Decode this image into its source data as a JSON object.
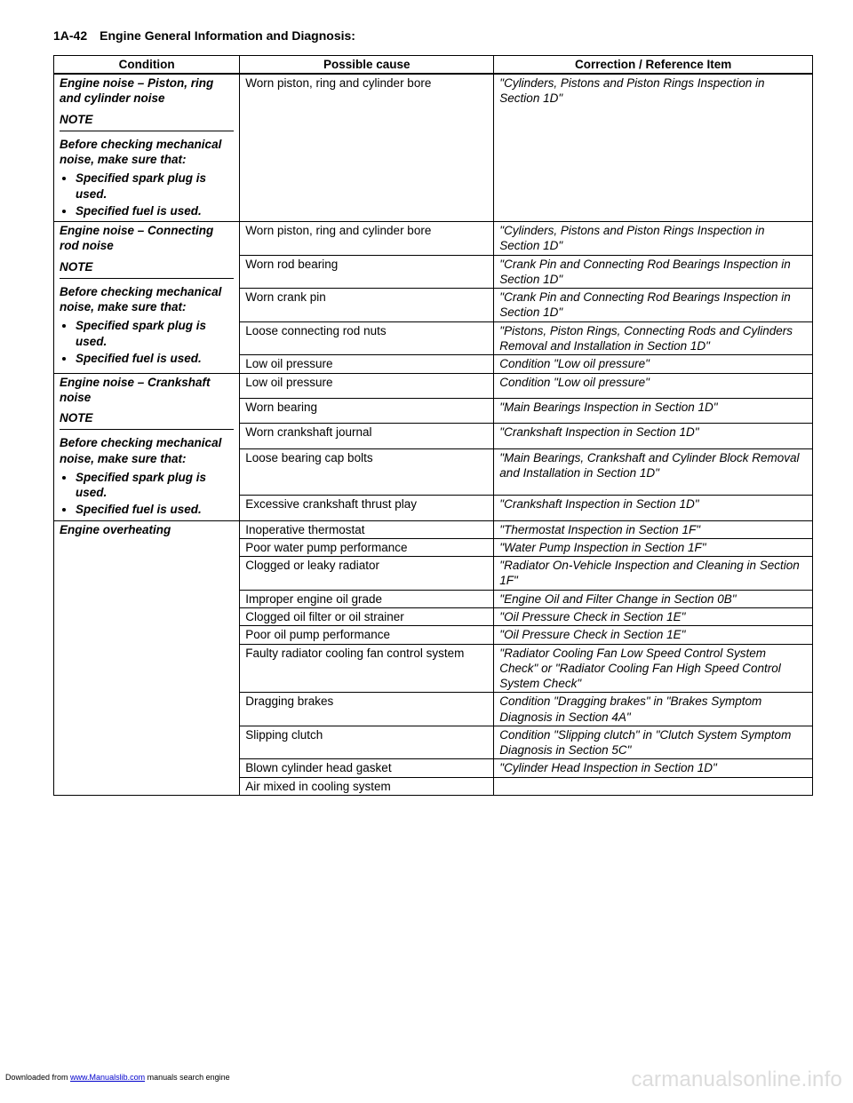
{
  "page_number": "1A-42",
  "page_title": "Engine General Information and Diagnosis:",
  "columns": [
    "Condition",
    "Possible cause",
    "Correction / Reference Item"
  ],
  "sections": [
    {
      "condition": {
        "title": "Engine noise – Piston, ring and cylinder noise",
        "note": "NOTE",
        "before": "Before checking mechanical noise, make sure that:",
        "bullets": [
          "Specified spark plug is used.",
          "Specified fuel is used."
        ]
      },
      "rows": [
        {
          "cause": "Worn piston, ring and cylinder bore",
          "ref": "\"Cylinders, Pistons and Piston Rings Inspection in Section 1D\""
        }
      ]
    },
    {
      "condition": {
        "title": "Engine noise – Connecting rod noise",
        "note": "NOTE",
        "before": "Before checking mechanical noise, make sure that:",
        "bullets": [
          "Specified spark plug is used.",
          "Specified fuel is used."
        ]
      },
      "rows": [
        {
          "cause": "Worn piston, ring and cylinder bore",
          "ref": "\"Cylinders, Pistons and Piston Rings Inspection in Section 1D\""
        },
        {
          "cause": "Worn rod bearing",
          "ref": "\"Crank Pin and Connecting Rod Bearings Inspection in Section 1D\""
        },
        {
          "cause": "Worn crank pin",
          "ref": "\"Crank Pin and Connecting Rod Bearings Inspection in Section 1D\""
        },
        {
          "cause": "Loose connecting rod nuts",
          "ref": "\"Pistons, Piston Rings, Connecting Rods and Cylinders Removal and Installation in Section 1D\""
        },
        {
          "cause": "Low oil pressure",
          "ref": "Condition \"Low oil pressure\""
        }
      ]
    },
    {
      "condition": {
        "title": "Engine noise – Crankshaft noise",
        "note": "NOTE",
        "before": "Before checking mechanical noise, make sure that:",
        "bullets": [
          "Specified spark plug is used.",
          "Specified fuel is used."
        ]
      },
      "rows": [
        {
          "cause": "Low oil pressure",
          "ref": "Condition \"Low oil pressure\""
        },
        {
          "cause": "Worn bearing",
          "ref": "\"Main Bearings Inspection in Section 1D\""
        },
        {
          "cause": "Worn crankshaft journal",
          "ref": "\"Crankshaft Inspection in Section 1D\""
        },
        {
          "cause": "Loose bearing cap bolts",
          "ref": "\"Main Bearings, Crankshaft and Cylinder Block Removal and Installation in Section 1D\""
        },
        {
          "cause": "Excessive crankshaft thrust play",
          "ref": "\"Crankshaft Inspection in Section 1D\""
        }
      ]
    },
    {
      "condition": {
        "title": "Engine overheating"
      },
      "rows": [
        {
          "cause": "Inoperative thermostat",
          "ref": "\"Thermostat Inspection in Section 1F\""
        },
        {
          "cause": "Poor water pump performance",
          "ref": "\"Water Pump Inspection in Section 1F\""
        },
        {
          "cause": "Clogged or leaky radiator",
          "ref": "\"Radiator On-Vehicle Inspection and Cleaning in Section 1F\""
        },
        {
          "cause": "Improper engine oil grade",
          "ref": "\"Engine Oil and Filter Change in Section 0B\""
        },
        {
          "cause": "Clogged oil filter or oil strainer",
          "ref": "\"Oil Pressure Check in Section 1E\""
        },
        {
          "cause": "Poor oil pump performance",
          "ref": "\"Oil Pressure Check in Section 1E\""
        },
        {
          "cause": "Faulty radiator cooling fan control system",
          "ref": "\"Radiator Cooling Fan Low Speed Control System Check\" or \"Radiator Cooling Fan High Speed Control System Check\""
        },
        {
          "cause": "Dragging brakes",
          "ref": "Condition \"Dragging brakes\" in \"Brakes Symptom Diagnosis in Section 4A\""
        },
        {
          "cause": "Slipping clutch",
          "ref": "Condition \"Slipping clutch\" in \"Clutch System Symptom Diagnosis in Section 5C\""
        },
        {
          "cause": "Blown cylinder head gasket",
          "ref": "\"Cylinder Head Inspection in Section 1D\""
        },
        {
          "cause": "Air mixed in cooling system",
          "ref": ""
        }
      ]
    }
  ],
  "footer": {
    "prefix": "Downloaded from ",
    "link_text": "www.Manualslib.com",
    "suffix": " manuals search engine"
  },
  "watermark": "carmanualsonline.info"
}
